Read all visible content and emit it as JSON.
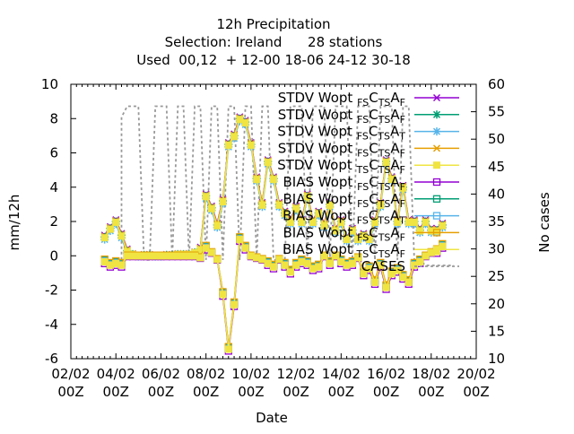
{
  "chart_data": {
    "type": "line",
    "title_lines": [
      "12h Precipitation",
      "Selection: Ireland      28 stations",
      "Used  00,12  + 12-00 18-06 24-12 30-18"
    ],
    "xlabel": "Date",
    "ylabel": "mm/12h",
    "y2label": "No cases",
    "x_ticks": [
      {
        "day": 2,
        "line1": "02/02",
        "line2": "00Z"
      },
      {
        "day": 4,
        "line1": "04/02",
        "line2": "00Z"
      },
      {
        "day": 6,
        "line1": "06/02",
        "line2": "00Z"
      },
      {
        "day": 8,
        "line1": "08/02",
        "line2": "00Z"
      },
      {
        "day": 10,
        "line1": "10/02",
        "line2": "00Z"
      },
      {
        "day": 12,
        "line1": "12/02",
        "line2": "00Z"
      },
      {
        "day": 14,
        "line1": "14/02",
        "line2": "00Z"
      },
      {
        "day": 16,
        "line1": "16/02",
        "line2": "00Z"
      },
      {
        "day": 18,
        "line1": "18/02",
        "line2": "00Z"
      },
      {
        "day": 20,
        "line1": "20/02",
        "line2": "00Z"
      }
    ],
    "xlim_days": [
      2,
      20
    ],
    "ylim": [
      -6,
      10
    ],
    "y_ticks": [
      -6,
      -4,
      -2,
      0,
      2,
      4,
      6,
      8,
      10
    ],
    "y2lim": [
      10,
      60
    ],
    "y2_ticks": [
      10,
      15,
      20,
      25,
      30,
      35,
      40,
      45,
      50,
      55,
      60
    ],
    "grid": false,
    "legend_position": "top-right",
    "legend": [
      {
        "pre": "STDV Wopt ",
        "s1": "FS",
        "mid": "C",
        "s2": "TS",
        "post": "A",
        "s3": "F"
      },
      {
        "pre": "STDV Wopt ",
        "s1": "FS",
        "mid": "C",
        "s2": "TS",
        "post": "A",
        "s3": "F"
      },
      {
        "pre": "STDV Wopt ",
        "s1": "FS",
        "mid": "C",
        "s2": "TS",
        "post": "A",
        "s3": "T"
      },
      {
        "pre": "STDV Wopt ",
        "s1": "FS",
        "mid": "C",
        "s2": "TS",
        "post": "A",
        "s3": "F"
      },
      {
        "pre": "STDV Wopt ",
        "s1": "TS",
        "mid": "C",
        "s2": "TS",
        "post": "A",
        "s3": "F"
      },
      {
        "pre": "BIAS Wopt ",
        "s1": "FS",
        "mid": "C",
        "s2": "TS",
        "post": "A",
        "s3": "F"
      },
      {
        "pre": "BIAS Wopt ",
        "s1": "FS",
        "mid": "C",
        "s2": "TS",
        "post": "A",
        "s3": "F"
      },
      {
        "pre": "BIAS Wopt ",
        "s1": "FS",
        "mid": "C",
        "s2": "TS",
        "post": "A",
        "s3": "T"
      },
      {
        "pre": "BIAS Wopt ",
        "s1": "FS",
        "mid": "C",
        "s2": "TS",
        "post": "A",
        "s3": "F"
      },
      {
        "pre": "BIAS Wopt ",
        "s1": "TS",
        "mid": "C",
        "s2": "TS",
        "post": "A",
        "s3": "F"
      },
      {
        "pre": "CASES",
        "s1": "",
        "mid": "",
        "s2": "",
        "post": "",
        "s3": ""
      }
    ],
    "colors": [
      "#9400d3",
      "#009e73",
      "#56b4e9",
      "#e69f00",
      "#f0e442"
    ],
    "cases_color": "#999999",
    "x_days": [
      3.5,
      3.75,
      4.0,
      4.25,
      4.5,
      4.75,
      5.0,
      5.25,
      5.5,
      5.75,
      6.0,
      6.25,
      6.5,
      6.75,
      7.0,
      7.25,
      7.5,
      7.75,
      8.0,
      8.25,
      8.5,
      8.75,
      9.0,
      9.25,
      9.5,
      9.75,
      10.0,
      10.25,
      10.5,
      10.75,
      11.0,
      11.25,
      11.5,
      11.75,
      12.0,
      12.25,
      12.5,
      12.75,
      13.0,
      13.25,
      13.5,
      13.75,
      14.0,
      14.25,
      14.5,
      14.75,
      15.0,
      15.25,
      15.5,
      15.75,
      16.0,
      16.25,
      16.5,
      16.75,
      17.0,
      17.25,
      17.5,
      17.75,
      18.0,
      18.25,
      18.5
    ],
    "stdv_base": [
      1.1,
      1.6,
      2.0,
      1.2,
      0.3,
      0.1,
      0.0,
      0.05,
      0.05,
      0.0,
      0.0,
      0.05,
      0.05,
      0.1,
      0.1,
      0.1,
      0.2,
      0.4,
      3.5,
      2.8,
      1.8,
      3.2,
      6.5,
      7.0,
      8.0,
      7.8,
      6.5,
      4.5,
      3.0,
      5.5,
      4.5,
      3.0,
      2.5,
      2.0,
      2.8,
      2.0,
      3.5,
      2.0,
      2.5,
      1.8,
      3.0,
      1.5,
      2.0,
      1.0,
      1.5,
      1.0,
      1.2,
      1.0,
      2.0,
      3.0,
      5.5,
      4.5,
      2.0,
      4.0,
      2.0,
      2.0,
      1.5,
      2.0,
      1.5,
      1.5,
      1.8
    ],
    "bias_base": [
      -0.3,
      -0.5,
      -0.4,
      -0.5,
      0.0,
      0.0,
      0.0,
      0.0,
      0.0,
      0.0,
      0.0,
      0.0,
      0.0,
      0.0,
      0.0,
      0.0,
      0.0,
      -0.1,
      0.5,
      0.2,
      -0.2,
      -2.2,
      -5.4,
      -2.8,
      1.0,
      0.5,
      0.0,
      -0.1,
      -0.2,
      -0.4,
      -0.6,
      -0.2,
      -0.5,
      -0.9,
      -0.5,
      -0.3,
      -0.4,
      -0.7,
      -0.6,
      0.0,
      -0.4,
      0.0,
      -0.3,
      -0.5,
      -0.4,
      -0.1,
      -1.0,
      -0.7,
      -1.5,
      -0.5,
      -1.8,
      -1.0,
      -0.8,
      -1.2,
      -1.5,
      -0.5,
      -0.3,
      0.0,
      0.2,
      0.3,
      0.6
    ],
    "cases": [
      [
        4.25,
        28
      ],
      [
        4.25,
        54
      ],
      [
        4.5,
        56
      ],
      [
        5.0,
        56
      ],
      [
        5.25,
        28
      ],
      [
        5.5,
        28
      ],
      [
        5.75,
        56
      ],
      [
        6.25,
        56
      ],
      [
        6.5,
        28
      ],
      [
        6.75,
        56
      ],
      [
        7.0,
        56
      ],
      [
        7.25,
        28
      ],
      [
        7.5,
        56
      ],
      [
        7.75,
        56
      ],
      [
        8.0,
        28
      ],
      [
        8.25,
        56
      ],
      [
        8.5,
        56
      ],
      [
        8.75,
        28
      ],
      [
        9.0,
        56
      ],
      [
        9.25,
        56
      ],
      [
        9.5,
        28
      ],
      [
        9.75,
        56
      ],
      [
        10.0,
        56
      ],
      [
        10.25,
        28
      ],
      [
        10.5,
        56
      ],
      [
        10.75,
        56
      ],
      [
        11.0,
        28
      ],
      [
        11.5,
        28
      ],
      [
        11.75,
        56
      ],
      [
        12.25,
        56
      ],
      [
        12.5,
        28
      ],
      [
        12.75,
        56
      ],
      [
        13.25,
        56
      ],
      [
        13.5,
        28
      ],
      [
        13.75,
        56
      ],
      [
        14.25,
        56
      ],
      [
        14.5,
        28
      ],
      [
        14.75,
        56
      ],
      [
        15.25,
        56
      ],
      [
        15.5,
        28
      ],
      [
        15.75,
        56
      ],
      [
        16.25,
        56
      ],
      [
        16.5,
        28
      ],
      [
        16.75,
        56
      ],
      [
        17.0,
        56
      ],
      [
        17.25,
        28
      ],
      [
        17.5,
        28
      ],
      [
        17.75,
        27
      ],
      [
        19.0,
        27
      ]
    ]
  }
}
